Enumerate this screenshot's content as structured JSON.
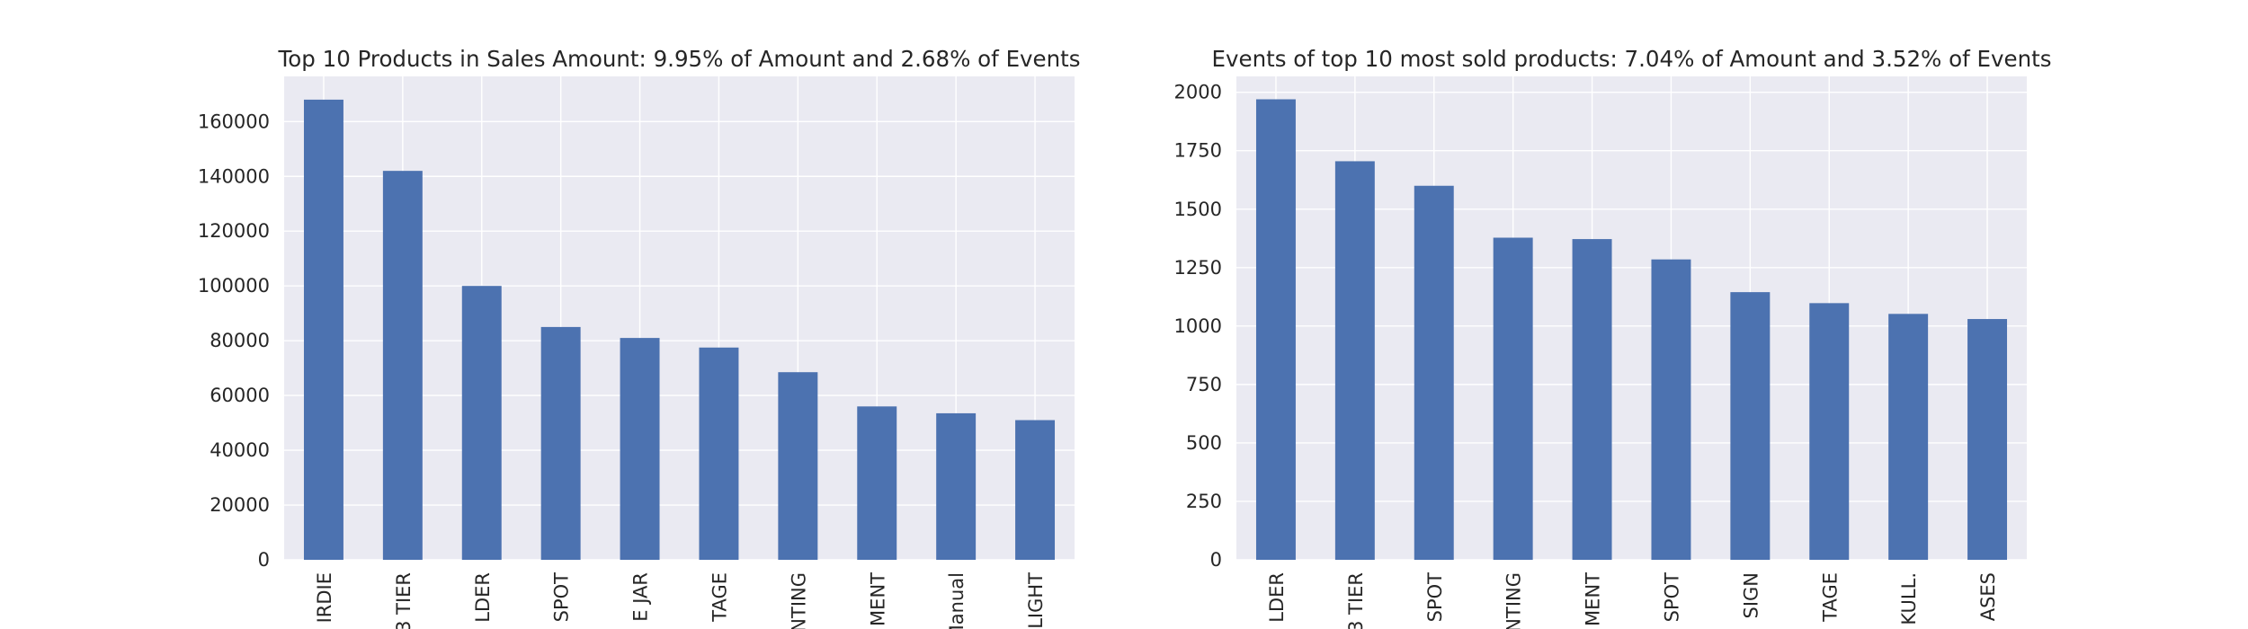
{
  "chart_data": [
    {
      "type": "bar",
      "title": "Top 10 Products in Sales Amount: 9.95% of Amount and 2.68% of Events",
      "xlabel": "",
      "ylabel": "",
      "categories": [
        "IRDIE",
        "3 TIER",
        "LDER",
        "SPOT",
        "E JAR",
        "TAGE",
        "NTING",
        "MENT",
        "Manual",
        "LIGHT"
      ],
      "values": [
        168000,
        142000,
        100000,
        85000,
        81000,
        77500,
        68500,
        56000,
        53500,
        51000
      ],
      "ylim": [
        0,
        176500
      ],
      "yticks": [
        0,
        20000,
        40000,
        60000,
        80000,
        100000,
        120000,
        140000,
        160000
      ],
      "bar_color": "#4c72b0",
      "background": "#eaeaf2",
      "grid": true
    },
    {
      "type": "bar",
      "title": "Events of top 10 most sold products: 7.04% of Amount and 3.52% of Events",
      "xlabel": "",
      "ylabel": "",
      "categories": [
        "LDER",
        "3 TIER",
        "SPOT",
        "NTING",
        "MENT",
        "SPOT",
        "SIGN",
        "TAGE",
        "KULL.",
        "ASES"
      ],
      "values": [
        1970,
        1705,
        1600,
        1378,
        1372,
        1285,
        1145,
        1098,
        1052,
        1030
      ],
      "ylim": [
        0,
        2068
      ],
      "yticks": [
        0,
        250,
        500,
        750,
        1000,
        1250,
        1500,
        1750,
        2000
      ],
      "bar_color": "#4c72b0",
      "background": "#eaeaf2",
      "grid": true
    }
  ]
}
